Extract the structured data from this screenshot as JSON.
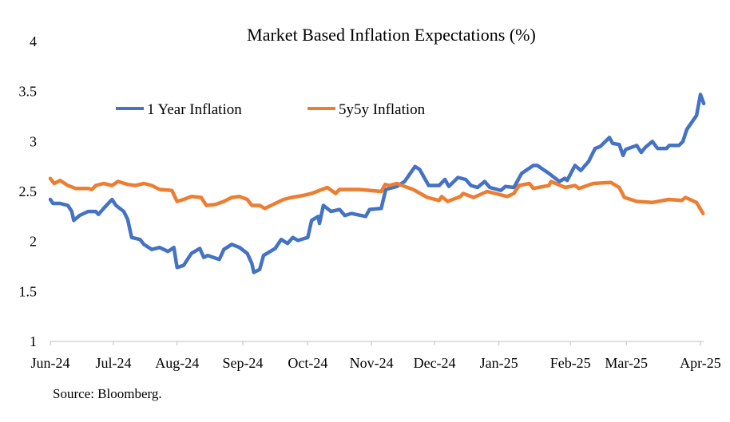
{
  "chart_data": {
    "type": "line",
    "title": "Market Based Inflation Expectations (%)",
    "xlabel": "",
    "ylabel": "",
    "source": "Source: Bloomberg.",
    "ylim": [
      1,
      4
    ],
    "yticks": [
      1,
      1.5,
      2,
      2.5,
      3,
      3.5,
      4
    ],
    "ytick_labels": [
      "1",
      "1.5",
      "2",
      "2.5",
      "3",
      "3.5",
      "4"
    ],
    "x_unit": "months since Jun-24",
    "xlim": [
      0,
      10.05
    ],
    "xticks": [
      {
        "label": "Jun-24",
        "x": 0
      },
      {
        "label": "Jul-24",
        "x": 0.97
      },
      {
        "label": "Aug-24",
        "x": 1.95
      },
      {
        "label": "Sep-24",
        "x": 2.96
      },
      {
        "label": "Oct-24",
        "x": 3.96
      },
      {
        "label": "Nov-24",
        "x": 4.94
      },
      {
        "label": "Dec-24",
        "x": 5.91
      },
      {
        "label": "Jan-25",
        "x": 6.9
      },
      {
        "label": "Feb-25",
        "x": 8.0
      },
      {
        "label": "Mar-25",
        "x": 8.86
      },
      {
        "label": "Apr-25",
        "x": 10.0
      }
    ],
    "grid": false,
    "legend_position": "top-left",
    "series": [
      {
        "name": "1 Year Inflation",
        "color": "#4472C4",
        "x": [
          0,
          0.04,
          0.15,
          0.27,
          0.33,
          0.36,
          0.45,
          0.58,
          0.7,
          0.74,
          0.82,
          0.95,
          1.01,
          1.13,
          1.19,
          1.25,
          1.38,
          1.44,
          1.56,
          1.68,
          1.81,
          1.9,
          1.95,
          2.05,
          2.17,
          2.3,
          2.36,
          2.42,
          2.6,
          2.67,
          2.79,
          2.91,
          3.03,
          3.1,
          3.13,
          3.22,
          3.28,
          3.46,
          3.55,
          3.65,
          3.73,
          3.81,
          3.96,
          4.02,
          4.12,
          4.14,
          4.2,
          4.32,
          4.45,
          4.53,
          4.63,
          4.85,
          4.91,
          5.09,
          5.16,
          5.33,
          5.45,
          5.61,
          5.68,
          5.82,
          5.98,
          6.07,
          6.13,
          6.27,
          6.39,
          6.47,
          6.57,
          6.68,
          6.76,
          6.93,
          7.0,
          7.13,
          7.25,
          7.43,
          7.49,
          7.67,
          7.83,
          7.91,
          7.95,
          8.07,
          8.16,
          8.28,
          8.38,
          8.46,
          8.6,
          8.65,
          8.75,
          8.81,
          8.85,
          9.02,
          9.09,
          9.15,
          9.26,
          9.34,
          9.48,
          9.52,
          9.67,
          9.73,
          9.79,
          9.94,
          10.0,
          10.05
        ],
        "values": [
          2.42,
          2.38,
          2.38,
          2.36,
          2.3,
          2.21,
          2.26,
          2.3,
          2.3,
          2.27,
          2.33,
          2.42,
          2.36,
          2.3,
          2.22,
          2.04,
          2.02,
          1.97,
          1.92,
          1.94,
          1.9,
          1.94,
          1.74,
          1.76,
          1.88,
          1.93,
          1.84,
          1.86,
          1.82,
          1.92,
          1.97,
          1.94,
          1.88,
          1.78,
          1.69,
          1.72,
          1.86,
          1.93,
          2.02,
          1.98,
          2.04,
          2.01,
          2.04,
          2.21,
          2.25,
          2.18,
          2.36,
          2.3,
          2.32,
          2.26,
          2.28,
          2.25,
          2.32,
          2.33,
          2.52,
          2.55,
          2.6,
          2.75,
          2.72,
          2.56,
          2.56,
          2.62,
          2.55,
          2.64,
          2.62,
          2.56,
          2.54,
          2.6,
          2.54,
          2.51,
          2.55,
          2.54,
          2.68,
          2.76,
          2.76,
          2.68,
          2.6,
          2.63,
          2.61,
          2.76,
          2.71,
          2.8,
          2.93,
          2.95,
          3.04,
          2.98,
          2.97,
          2.86,
          2.92,
          2.96,
          2.89,
          2.94,
          3.0,
          2.93,
          2.93,
          2.96,
          2.96,
          3.0,
          3.12,
          3.26,
          3.47,
          3.38
        ]
      },
      {
        "name": "5y5y Inflation",
        "color": "#ED7D31",
        "x": [
          0,
          0.06,
          0.15,
          0.27,
          0.39,
          0.58,
          0.64,
          0.7,
          0.82,
          0.95,
          1.04,
          1.19,
          1.31,
          1.44,
          1.56,
          1.68,
          1.87,
          1.95,
          2.05,
          2.17,
          2.32,
          2.4,
          2.54,
          2.67,
          2.79,
          2.91,
          3.03,
          3.1,
          3.22,
          3.3,
          3.46,
          3.59,
          3.71,
          3.89,
          4.02,
          4.26,
          4.39,
          4.45,
          4.63,
          4.75,
          5.09,
          5.15,
          5.21,
          5.33,
          5.58,
          5.8,
          5.98,
          6.02,
          6.11,
          6.31,
          6.35,
          6.51,
          6.72,
          7.03,
          7.13,
          7.21,
          7.37,
          7.43,
          7.67,
          7.7,
          7.92,
          8.07,
          8.13,
          8.35,
          8.62,
          8.75,
          8.83,
          9.02,
          9.26,
          9.51,
          9.71,
          9.77,
          9.94,
          10.04
        ],
        "values": [
          2.63,
          2.58,
          2.61,
          2.56,
          2.53,
          2.53,
          2.52,
          2.56,
          2.58,
          2.56,
          2.6,
          2.57,
          2.56,
          2.58,
          2.56,
          2.52,
          2.51,
          2.4,
          2.42,
          2.45,
          2.44,
          2.36,
          2.37,
          2.4,
          2.44,
          2.45,
          2.42,
          2.36,
          2.36,
          2.33,
          2.38,
          2.42,
          2.44,
          2.46,
          2.48,
          2.54,
          2.48,
          2.52,
          2.52,
          2.52,
          2.5,
          2.57,
          2.56,
          2.58,
          2.52,
          2.44,
          2.41,
          2.45,
          2.4,
          2.45,
          2.48,
          2.44,
          2.5,
          2.45,
          2.48,
          2.56,
          2.58,
          2.53,
          2.56,
          2.6,
          2.54,
          2.56,
          2.53,
          2.58,
          2.59,
          2.54,
          2.44,
          2.4,
          2.39,
          2.42,
          2.41,
          2.44,
          2.39,
          2.28
        ]
      }
    ]
  }
}
